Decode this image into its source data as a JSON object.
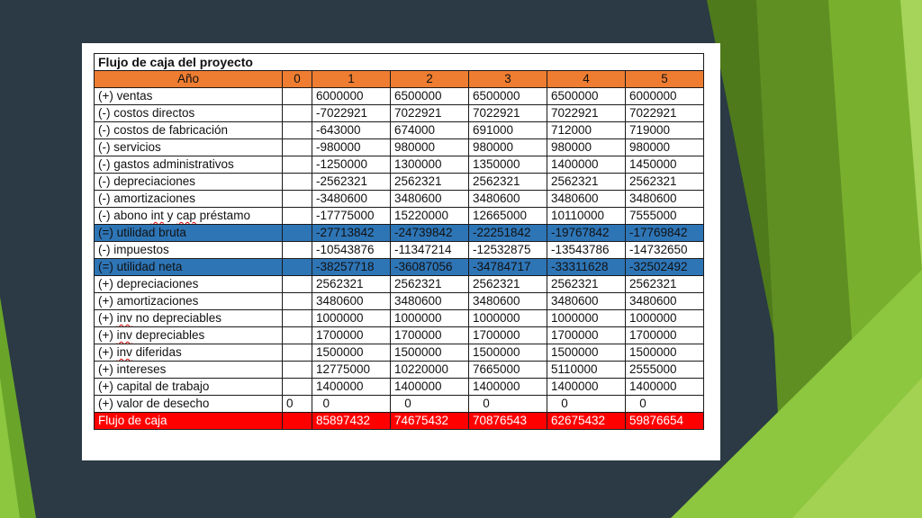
{
  "table": {
    "title": "Flujo de caja del proyecto",
    "header": [
      "Año",
      "0",
      "1",
      "2",
      "3",
      "4",
      "5"
    ],
    "rows": [
      {
        "label": "(+) ventas",
        "y0": "",
        "values": [
          "6000000",
          "6500000",
          "6500000",
          "6500000",
          "6000000"
        ],
        "style": "normal"
      },
      {
        "label": "(-) costos directos",
        "y0": "",
        "values": [
          "-7022921",
          "7022921",
          "7022921",
          "7022921",
          "7022921"
        ],
        "style": "normal"
      },
      {
        "label": "(-) costos de fabricación",
        "y0": "",
        "values": [
          "-643000",
          "674000",
          "691000",
          "712000",
          "719000"
        ],
        "style": "normal"
      },
      {
        "label": "(-) servicios",
        "y0": "",
        "values": [
          "-980000",
          "980000",
          "980000",
          "980000",
          "980000"
        ],
        "style": "normal"
      },
      {
        "label": "(-) gastos administrativos",
        "y0": "",
        "values": [
          "-1250000",
          "1300000",
          "1350000",
          "1400000",
          "1450000"
        ],
        "style": "normal"
      },
      {
        "label": "(-) depreciaciones",
        "y0": "",
        "values": [
          "-2562321",
          "2562321",
          "2562321",
          "2562321",
          "2562321"
        ],
        "style": "normal"
      },
      {
        "label": "(-) amortizaciones",
        "y0": "",
        "values": [
          "-3480600",
          "3480600",
          "3480600",
          "3480600",
          "3480600"
        ],
        "style": "normal"
      },
      {
        "label": "(-) abono int y cap préstamo",
        "y0": "",
        "values": [
          "-17775000",
          "15220000",
          "12665000",
          "10110000",
          "7555000"
        ],
        "style": "normal"
      },
      {
        "label": "(=) utilidad bruta",
        "y0": "",
        "values": [
          "-27713842",
          "-24739842",
          "-22251842",
          "-19767842",
          "-17769842"
        ],
        "style": "blue"
      },
      {
        "label": "(-) impuestos",
        "y0": "",
        "values": [
          "-10543876",
          "-11347214",
          "-12532875",
          "-13543786",
          "-14732650"
        ],
        "style": "normal"
      },
      {
        "label": "(=)  utilidad neta",
        "y0": "",
        "values": [
          "-38257718",
          "-36087056",
          "-34784717",
          "-33311628",
          "-32502492"
        ],
        "style": "blue"
      },
      {
        "label": "(+) depreciaciones",
        "y0": "",
        "values": [
          "2562321",
          "2562321",
          "2562321",
          "2562321",
          "2562321"
        ],
        "style": "normal"
      },
      {
        "label": "(+) amortizaciones",
        "y0": "",
        "values": [
          "3480600",
          "3480600",
          "3480600",
          "3480600",
          "3480600"
        ],
        "style": "normal"
      },
      {
        "label": "(+) inv no depreciables",
        "y0": "",
        "values": [
          "1000000",
          "1000000",
          "1000000",
          "1000000",
          "1000000"
        ],
        "style": "normal"
      },
      {
        "label": "(+) inv depreciables",
        "y0": "",
        "values": [
          "1700000",
          "1700000",
          "1700000",
          "1700000",
          "1700000"
        ],
        "style": "normal"
      },
      {
        "label": "(+) inv diferidas",
        "y0": "",
        "values": [
          "1500000",
          "1500000",
          "1500000",
          "1500000",
          "1500000"
        ],
        "style": "normal"
      },
      {
        "label": "(+) intereses",
        "y0": "",
        "values": [
          "12775000",
          "10220000",
          "7665000",
          "5110000",
          "2555000"
        ],
        "style": "normal"
      },
      {
        "label": "(+) capital de trabajo",
        "y0": "",
        "values": [
          "1400000",
          "1400000",
          "1400000",
          "1400000",
          "1400000"
        ],
        "style": "normal"
      },
      {
        "label": "(+) valor de desecho",
        "y0": "0",
        "values": [
          "  0",
          "   0",
          "   0",
          "   0",
          "   0"
        ],
        "style": "normal"
      },
      {
        "label": "Flujo de caja",
        "y0": "",
        "values": [
          "85897432",
          "74675432",
          "70876543",
          "62675432",
          "59876654"
        ],
        "style": "red"
      }
    ]
  },
  "colors": {
    "background": "#2b3a44",
    "header_orange": "#ee7d31",
    "highlight_blue": "#2e75b6",
    "total_red": "#ff0000",
    "green_accent": "#8dc63f"
  }
}
